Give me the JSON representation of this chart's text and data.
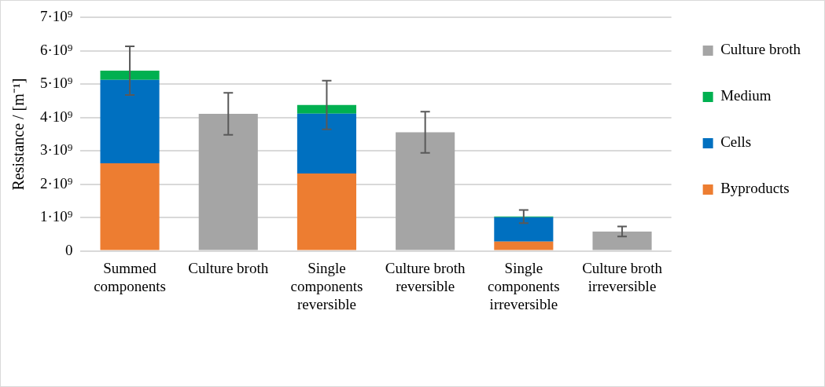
{
  "chart_data": {
    "type": "bar",
    "stacked": true,
    "ylabel": "Resistance / [m⁻¹]",
    "categories": [
      "Summed components",
      "Culture broth",
      "Single components reversible",
      "Culture broth reversible",
      "Single components irreversible",
      "Culture broth irreversible"
    ],
    "series": [
      {
        "name": "Byproducts",
        "color": "#ed7d31",
        "values": [
          2630000000,
          null,
          2320000000,
          null,
          280000000,
          null
        ]
      },
      {
        "name": "Cells",
        "color": "#0070c0",
        "values": [
          2500000000,
          null,
          1800000000,
          null,
          730000000,
          null
        ]
      },
      {
        "name": "Medium",
        "color": "#00b050",
        "values": [
          280000000,
          null,
          260000000,
          null,
          20000000,
          null
        ],
        "errors": [
          730000000,
          null,
          730000000,
          null,
          200000000,
          null
        ]
      },
      {
        "name": "Culture broth",
        "color": "#a5a5a5",
        "values": [
          null,
          4110000000,
          null,
          3560000000,
          null,
          580000000
        ],
        "errors": [
          null,
          630000000,
          null,
          620000000,
          null,
          150000000
        ]
      }
    ],
    "ylim": [
      0,
      7000000000
    ],
    "yticks": [
      0,
      {
        "value": 1000000000,
        "label": "1·10⁹"
      },
      {
        "value": 2000000000,
        "label": "2·10⁹"
      },
      {
        "value": 3000000000,
        "label": "3·10⁹"
      },
      {
        "value": 4000000000,
        "label": "4·10⁹"
      },
      {
        "value": 5000000000,
        "label": "5·10⁹"
      },
      {
        "value": 6000000000,
        "label": "6·10⁹"
      },
      {
        "value": 7000000000,
        "label": "7·10⁹"
      }
    ],
    "grid": "y",
    "legend": "right"
  }
}
